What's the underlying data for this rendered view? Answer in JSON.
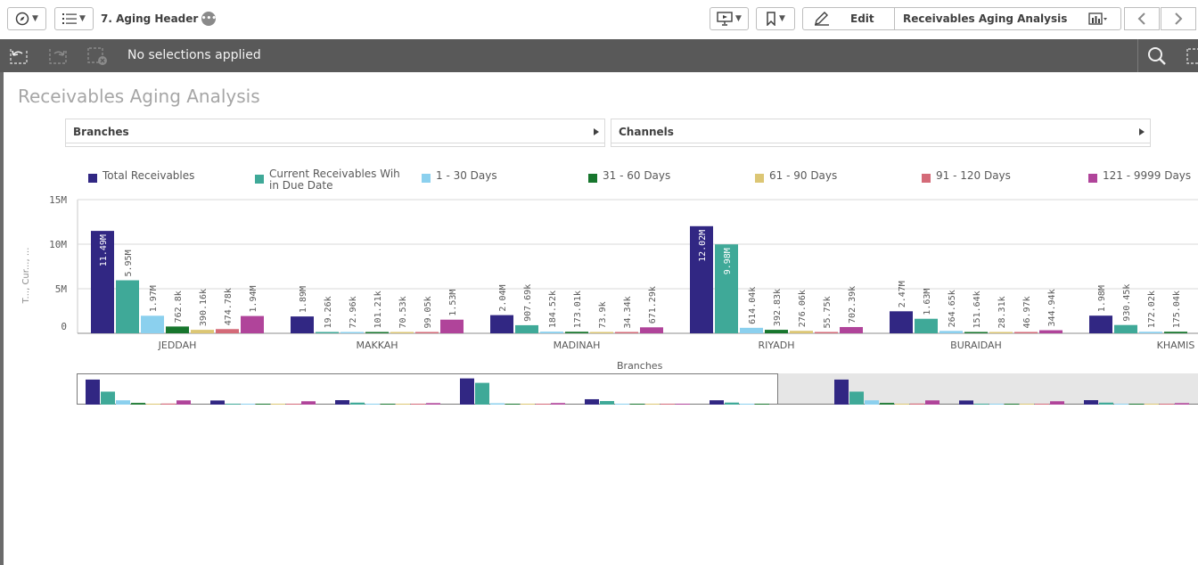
{
  "toolbar": {
    "sheet_title": "7. Aging Header",
    "edit_label": "Edit",
    "sheet_name": "Receivables Aging Analysis"
  },
  "selection_bar": {
    "text": "No selections applied"
  },
  "page": {
    "title": "Receivables Aging Analysis"
  },
  "filters": [
    {
      "label": "Branches"
    },
    {
      "label": "Channels"
    }
  ],
  "legend": [
    {
      "label": "Total Receivables",
      "color": "#312783"
    },
    {
      "label": "Current Receivables Wih in Due Date",
      "color": "#3fa998"
    },
    {
      "label": "1 - 30 Days",
      "color": "#8bd0ee"
    },
    {
      "label": "31 - 60 Days",
      "color": "#17762d"
    },
    {
      "label": "61 - 90 Days",
      "color": "#dcc674"
    },
    {
      "label": "91 - 120 Days",
      "color": "#d46a78"
    },
    {
      "label": "121 - 9999 Days",
      "color": "#b0449a"
    }
  ],
  "chart_data": {
    "type": "bar",
    "title": "",
    "xlabel": "Branches",
    "ylabel": "T..., Cur..., ...",
    "ylim": [
      0,
      15000000
    ],
    "yticks": [
      "0",
      "5M",
      "10M",
      "15M"
    ],
    "grid": true,
    "legend_position": "top",
    "categories": [
      "JEDDAH",
      "MAKKAH",
      "MADINAH",
      "RIYADH",
      "BURAIDAH",
      "KHAMIS"
    ],
    "series": [
      {
        "name": "Total Receivables",
        "color": "#312783",
        "values": [
          11490000,
          1890000,
          2040000,
          12020000,
          2470000,
          1980000
        ],
        "labels": [
          "11.49M",
          "1.89M",
          "2.04M",
          "12.02M",
          "2.47M",
          "1.98M"
        ]
      },
      {
        "name": "Current Receivables Wih in Due Date",
        "color": "#3fa998",
        "values": [
          5950000,
          19260,
          907690,
          9980000,
          1630000,
          930450
        ],
        "labels": [
          "5.95M",
          "19.26k",
          "907.69k",
          "9.98M",
          "1.63M",
          "930.45k"
        ]
      },
      {
        "name": "1 - 30 Days",
        "color": "#8bd0ee",
        "values": [
          1970000,
          72960,
          184520,
          614040,
          264650,
          172020
        ],
        "labels": [
          "1.97M",
          "72.96k",
          "184.52k",
          "614.04k",
          "264.65k",
          "172.02k"
        ]
      },
      {
        "name": "31 - 60 Days",
        "color": "#17762d",
        "values": [
          762800,
          101210,
          173010,
          392830,
          151640,
          175040
        ],
        "labels": [
          "762.8k",
          "101.21k",
          "173.01k",
          "392.83k",
          "151.64k",
          "175.04k"
        ]
      },
      {
        "name": "61 - 90 Days",
        "color": "#dcc674",
        "values": [
          390160,
          70530,
          73900,
          276060,
          28310,
          null
        ],
        "labels": [
          "390.16k",
          "70.53k",
          "73.9k",
          "276.06k",
          "28.31k",
          ""
        ]
      },
      {
        "name": "91 - 120 Days",
        "color": "#d46a78",
        "values": [
          474780,
          99050,
          34340,
          55750,
          46970,
          null
        ],
        "labels": [
          "474.78k",
          "99.05k",
          "34.34k",
          "55.75k",
          "46.97k",
          ""
        ]
      },
      {
        "name": "121 - 9999 Days",
        "color": "#b0449a",
        "values": [
          1940000,
          1530000,
          671290,
          702390,
          344940,
          null
        ],
        "labels": [
          "1.94M",
          "1.53M",
          "671.29k",
          "702.39k",
          "344.94k",
          ""
        ]
      }
    ]
  }
}
